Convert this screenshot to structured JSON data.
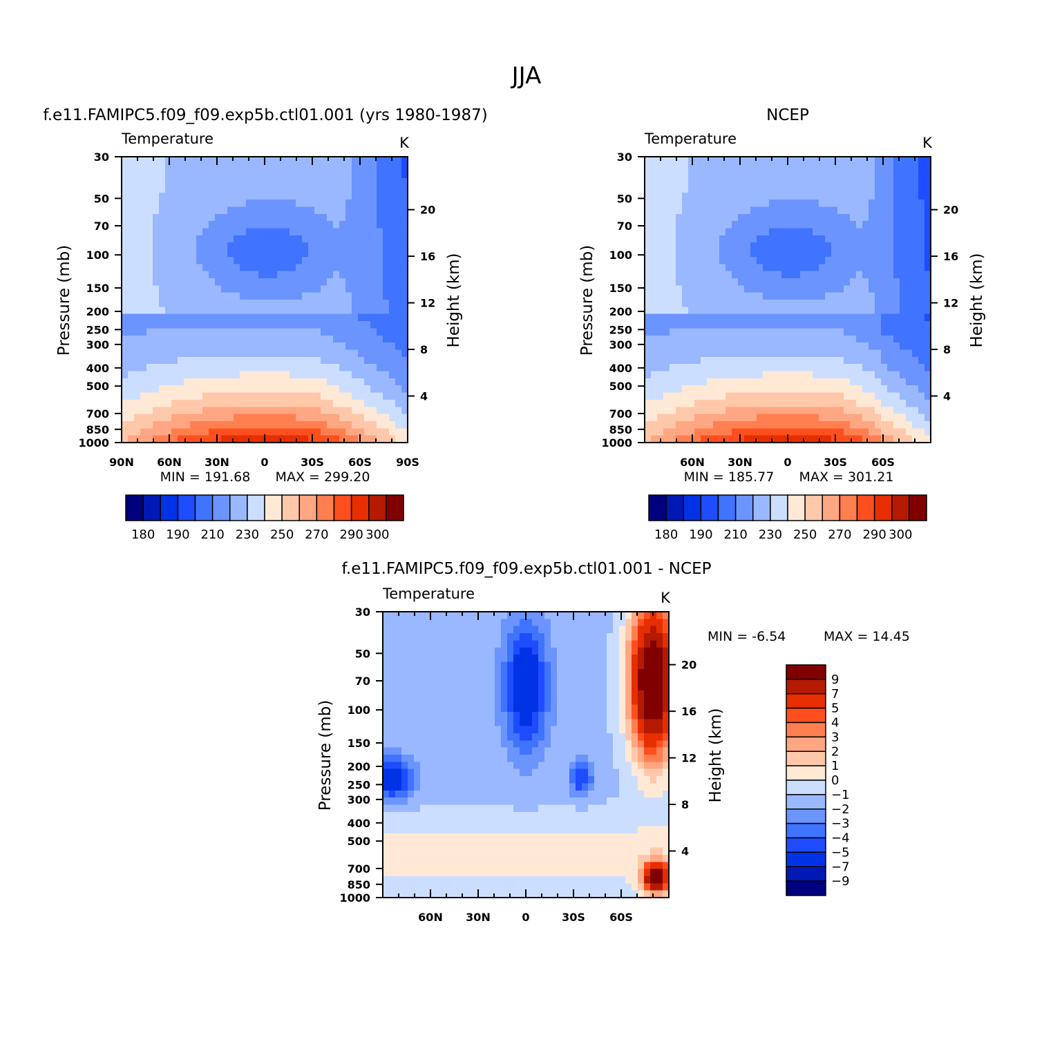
{
  "figure": {
    "title": "JJA"
  },
  "colors": {
    "blue_red_16": [
      "#00007f",
      "#0019b4",
      "#0033e6",
      "#1f4cff",
      "#4073ff",
      "#6b94ff",
      "#99b8ff",
      "#ccdeff",
      "#ffe9d6",
      "#ffc8aa",
      "#ffa682",
      "#ff7f50",
      "#ff4f1f",
      "#e62e00",
      "#b31a00",
      "#800000"
    ]
  },
  "chart_data": [
    {
      "type": "contour",
      "title": "f.e11.FAMIPC5.f09_f09.exp5b.ctl01.001 (yrs 1980-1987)",
      "field_label": "Temperature",
      "units": "K",
      "xlabel": "",
      "ylabel": "Pressure (mb)",
      "ylabel_right": "Height (km)",
      "x_ticks": [
        "90N",
        "60N",
        "30N",
        "0",
        "30S",
        "60S",
        "90S"
      ],
      "x_tick_values": [
        90,
        60,
        30,
        0,
        -30,
        -60,
        -90
      ],
      "xlim": [
        90,
        -90
      ],
      "y_ticks": [
        30,
        50,
        70,
        100,
        150,
        200,
        250,
        300,
        400,
        500,
        700,
        850,
        1000
      ],
      "ylim": [
        1000,
        30
      ],
      "y_scale": "log",
      "height_ticks": [
        20,
        16,
        12,
        8,
        4
      ],
      "min_label": "MIN = 191.68",
      "max_label": "MAX = 299.20",
      "min": 191.68,
      "max": 299.2,
      "colorbar": {
        "orientation": "horizontal",
        "tick_labels": [
          "180",
          "190",
          "210",
          "230",
          "250",
          "270",
          "290",
          "300"
        ],
        "levels": [
          180,
          185,
          190,
          200,
          210,
          220,
          230,
          240,
          250,
          260,
          270,
          280,
          290,
          295,
          300
        ]
      }
    },
    {
      "type": "contour",
      "title": "NCEP",
      "field_label": "Temperature",
      "units": "K",
      "xlabel": "",
      "ylabel": "Pressure (mb)",
      "ylabel_right": "Height (km)",
      "x_ticks": [
        "60N",
        "30N",
        "0",
        "30S",
        "60S"
      ],
      "x_tick_values": [
        60,
        30,
        0,
        -30,
        -60
      ],
      "xlim": [
        90,
        -90
      ],
      "y_ticks": [
        30,
        50,
        70,
        100,
        150,
        200,
        250,
        300,
        400,
        500,
        700,
        850,
        1000
      ],
      "ylim": [
        1000,
        30
      ],
      "y_scale": "log",
      "height_ticks": [
        20,
        16,
        12,
        8,
        4
      ],
      "min_label": "MIN = 185.77",
      "max_label": "MAX = 301.21",
      "min": 185.77,
      "max": 301.21,
      "colorbar": {
        "orientation": "horizontal",
        "tick_labels": [
          "180",
          "190",
          "210",
          "230",
          "250",
          "270",
          "290",
          "300"
        ],
        "levels": [
          180,
          185,
          190,
          200,
          210,
          220,
          230,
          240,
          250,
          260,
          270,
          280,
          290,
          295,
          300
        ]
      }
    },
    {
      "type": "contour",
      "title": "f.e11.FAMIPC5.f09_f09.exp5b.ctl01.001 - NCEP",
      "field_label": "Temperature",
      "units": "K",
      "xlabel": "",
      "ylabel": "Pressure (mb)",
      "ylabel_right": "Height (km)",
      "x_ticks": [
        "60N",
        "30N",
        "0",
        "30S",
        "60S"
      ],
      "x_tick_values": [
        60,
        30,
        0,
        -30,
        -60
      ],
      "xlim": [
        90,
        -90
      ],
      "y_ticks": [
        30,
        50,
        70,
        100,
        150,
        200,
        250,
        300,
        400,
        500,
        700,
        850,
        1000
      ],
      "ylim": [
        1000,
        30
      ],
      "y_scale": "log",
      "height_ticks": [
        20,
        16,
        12,
        8,
        4
      ],
      "min_label": "MIN =   -6.54",
      "max_label": "MAX =   14.45",
      "min": -6.54,
      "max": 14.45,
      "colorbar": {
        "orientation": "vertical",
        "tick_labels": [
          "9",
          "7",
          "5",
          "4",
          "3",
          "2",
          "1",
          "0",
          "−1",
          "−2",
          "−3",
          "−4",
          "−5",
          "−7",
          "−9"
        ],
        "levels": [
          9,
          7,
          5,
          4,
          3,
          2,
          1,
          0,
          -1,
          -2,
          -3,
          -4,
          -5,
          -7,
          -9
        ]
      }
    }
  ]
}
